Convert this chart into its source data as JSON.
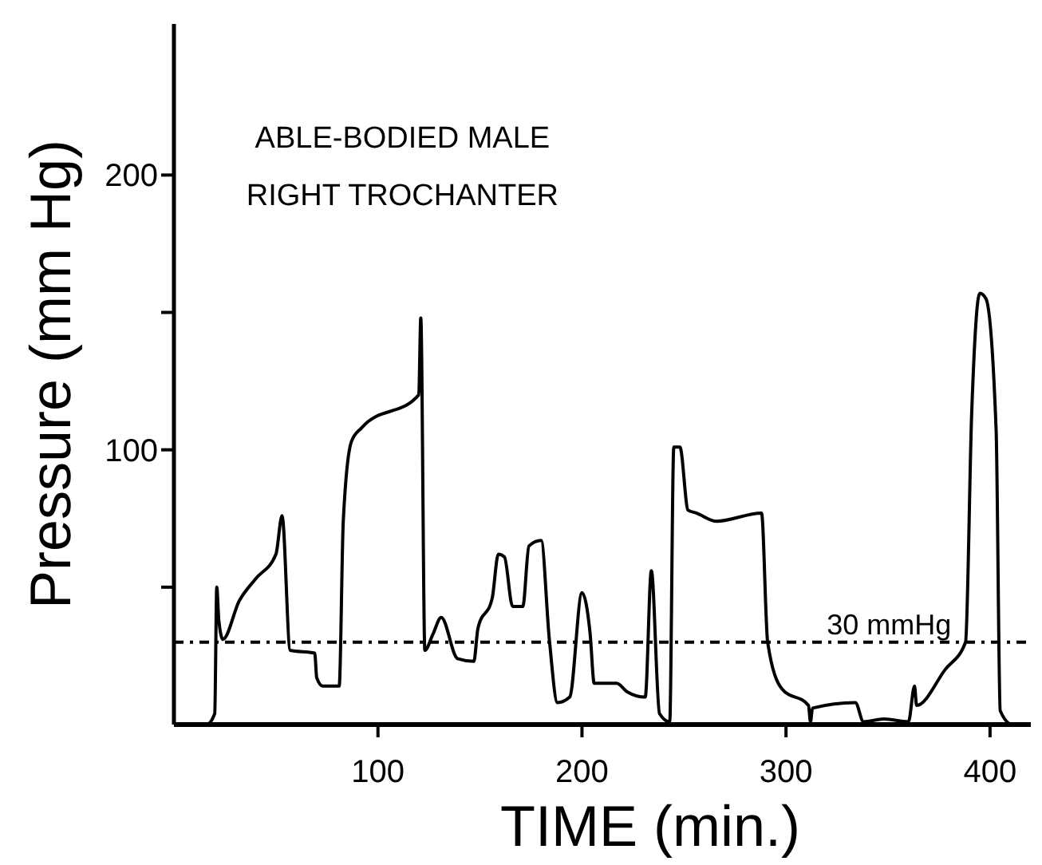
{
  "chart_data": {
    "type": "line",
    "title": "ABLE-BODIED MALE",
    "subtitle": "RIGHT TROCHANTER",
    "xlabel": "TIME (min.)",
    "ylabel": "Pressure (mm Hg)",
    "xlim": [
      0,
      420
    ],
    "ylim": [
      0,
      255
    ],
    "xticks": [
      100,
      200,
      300,
      400
    ],
    "yticks": [
      {
        "value": 50,
        "label": null
      },
      100,
      {
        "value": 150,
        "label": null
      },
      200
    ],
    "grid": false,
    "marker": "none",
    "line_style": "solid",
    "ref_lines": [
      {
        "axis": "y",
        "value": 30,
        "label": "30 mmHg",
        "line_style": "dashed",
        "color": "#000000"
      }
    ],
    "series": [
      {
        "color": "#000000",
        "x": [
          2,
          16,
          20,
          21,
          22,
          24,
          32,
          40,
          50,
          53,
          57,
          69,
          70,
          73,
          81,
          83,
          87,
          92,
          120,
          121,
          123,
          127,
          131,
          139,
          147,
          149,
          156,
          159,
          162,
          166,
          171,
          174,
          180,
          184,
          188,
          194,
          200,
          204,
          206,
          217,
          222,
          231,
          234,
          238,
          243,
          245,
          248,
          252,
          256,
          266,
          288,
          291,
          298,
          311,
          312,
          313,
          334,
          338,
          348,
          360,
          363,
          364,
          378,
          388,
          391,
          395,
          398,
          403,
          405,
          411,
          415
        ],
        "values": [
          0,
          0,
          4,
          50,
          38,
          31,
          45,
          53,
          62,
          76,
          27,
          26,
          17,
          14,
          14,
          74,
          103,
          108,
          120,
          148,
          27,
          33,
          39,
          24,
          23,
          35,
          46,
          62,
          61,
          43,
          43,
          65,
          67,
          31,
          8,
          10,
          48,
          33,
          15,
          15,
          12,
          10,
          56,
          4,
          1,
          101,
          101,
          78,
          77,
          74,
          77,
          30,
          13,
          7,
          1,
          6,
          8,
          1,
          2,
          1,
          14,
          7,
          20,
          30,
          113,
          157,
          155,
          107,
          5,
          0,
          0
        ]
      }
    ]
  }
}
